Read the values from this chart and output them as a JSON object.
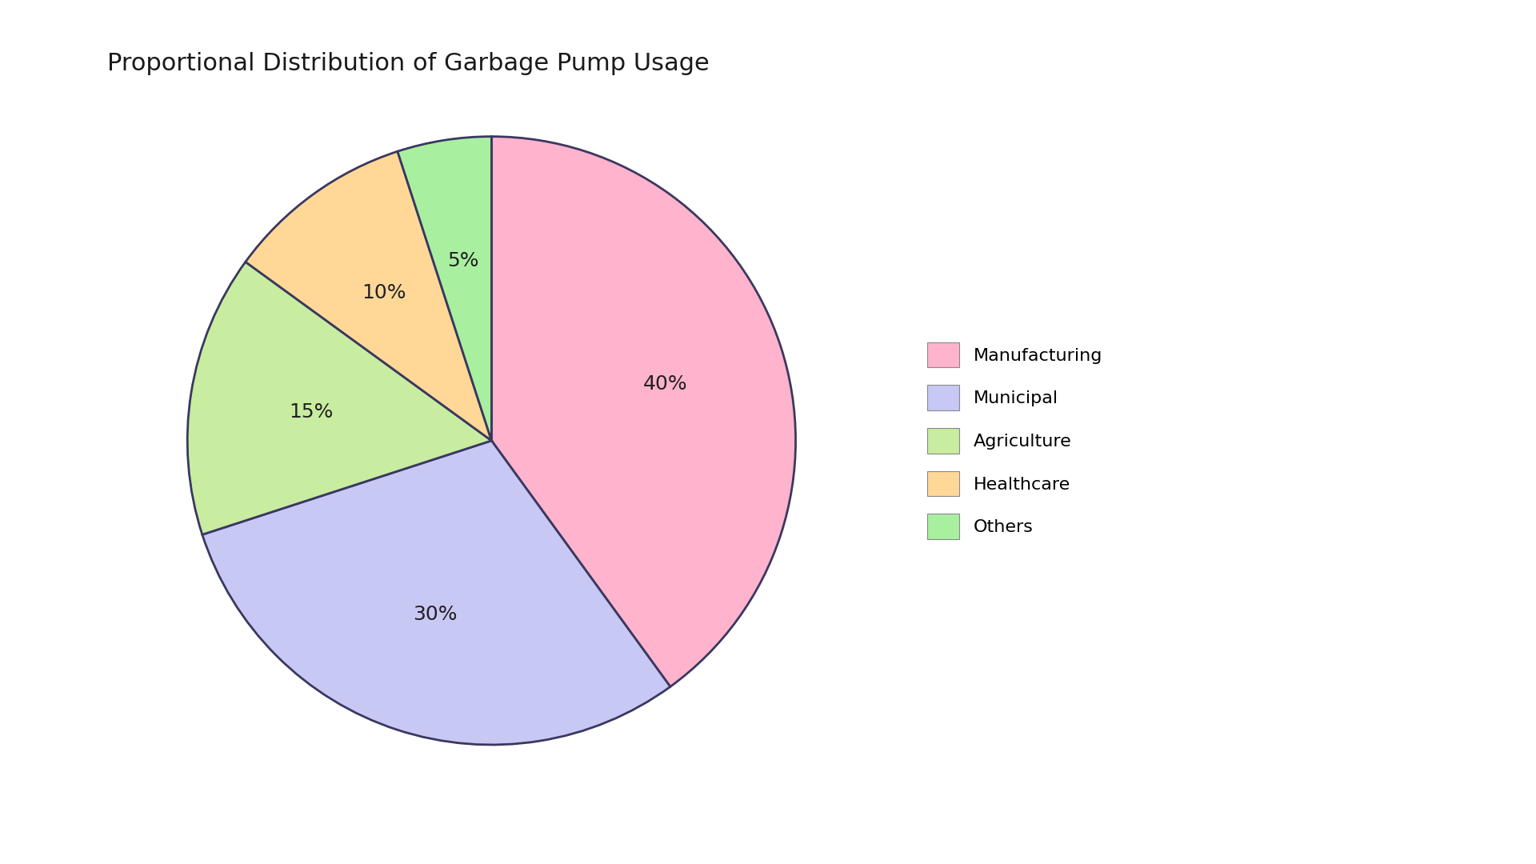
{
  "title": "Proportional Distribution of Garbage Pump Usage",
  "title_fontsize": 22,
  "labels": [
    "Manufacturing",
    "Municipal",
    "Agriculture",
    "Healthcare",
    "Others"
  ],
  "values": [
    40,
    30,
    15,
    10,
    5
  ],
  "colors": [
    "#FFB3CC",
    "#C8C8F5",
    "#C8EDA0",
    "#FFD898",
    "#A8F0A0"
  ],
  "edge_color": "#3A3860",
  "edge_linewidth": 2.0,
  "pct_labels": [
    "40%",
    "30%",
    "15%",
    "10%",
    "5%"
  ],
  "startangle": 90,
  "legend_fontsize": 16,
  "pct_fontsize": 18,
  "background_color": "#FFFFFF",
  "counterclock": false
}
